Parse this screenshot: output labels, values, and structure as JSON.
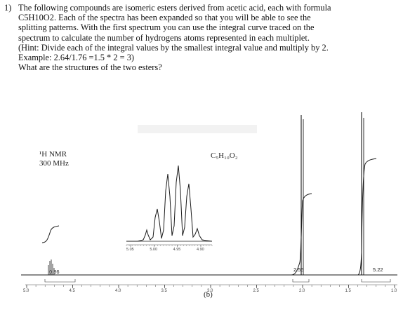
{
  "question": {
    "number": "1)",
    "lines": [
      "The following compounds are isomeric esters derived from acetic acid, each with formula",
      "C5H10O2. Each of the spectra has been expanded so that you will be able to see the",
      "splitting patterns. With the first spectrum you can use the integral curve traced on the",
      "spectrum to calculate the number of hydrogens atoms represented in each multiplet.",
      "(Hint: Divide each of the integral values by the smallest integral value and multiply by 2.",
      "Example: 2.64/1.76 =1.5 * 2 = 3)",
      "What are the structures of the two esters?"
    ]
  },
  "spectrum": {
    "nucleus": "¹H NMR",
    "frequency": "300 MHz",
    "formula": "C₅H₁₀O₂",
    "panel": "(b)",
    "integrals": [
      "0.86",
      "2.55",
      "5.22"
    ],
    "axis_ticks": [
      "5.0",
      "4.5",
      "4.0",
      "3.5",
      "3.0",
      "2.5",
      "2.0",
      "1.5",
      "1.0"
    ],
    "inset_ticks": [
      "5.05",
      "5.00",
      "4.95",
      "4.90"
    ],
    "peaks_ppm": [
      4.99,
      2.03,
      1.21
    ],
    "colors": {
      "ink": "#1a1a1a",
      "paper": "#ffffff"
    }
  }
}
